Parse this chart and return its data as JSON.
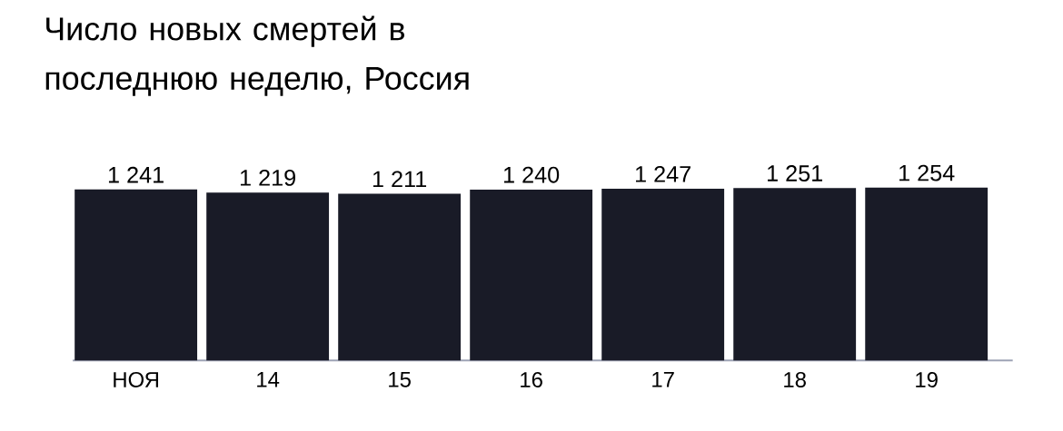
{
  "chart_data": {
    "type": "bar",
    "title": "Число новых смертей в последнюю неделю, Россия",
    "categories": [
      "НОЯ",
      "14",
      "15",
      "16",
      "17",
      "18",
      "19"
    ],
    "values": [
      1241,
      1219,
      1211,
      1240,
      1247,
      1251,
      1254
    ],
    "value_labels": [
      "1 241",
      "1 219",
      "1 211",
      "1 240",
      "1 247",
      "1 251",
      "1 254"
    ],
    "color": "#191b27"
  }
}
